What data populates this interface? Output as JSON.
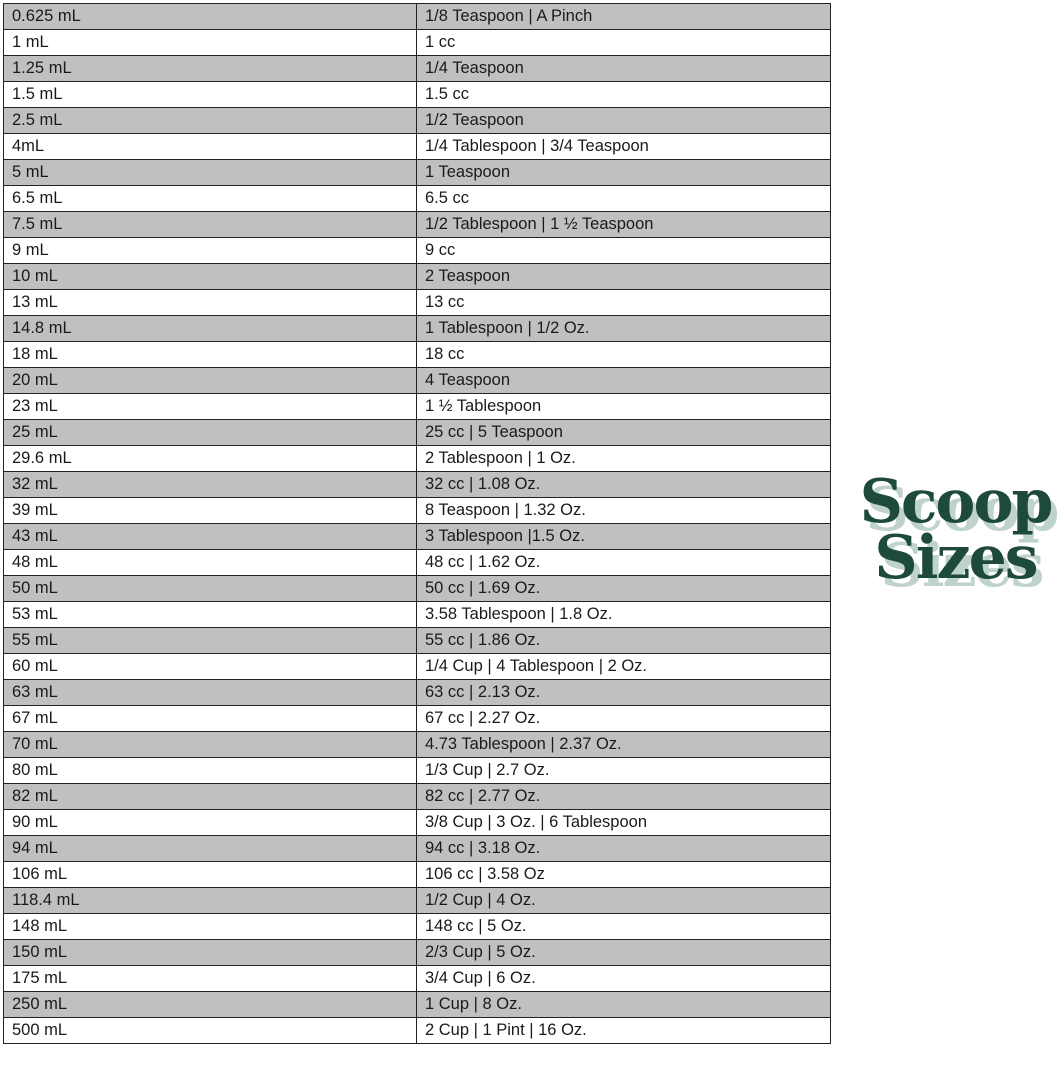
{
  "logo": {
    "line1": "Scoop",
    "line2": "Sizes",
    "colors": {
      "text": "#1d4a3d",
      "shadow": "#bfd2cc"
    }
  },
  "table": {
    "row_colors": [
      "#c0c0c0",
      "#ffffff"
    ],
    "rows": [
      [
        "0.625 mL",
        "1/8 Teaspoon | A Pinch"
      ],
      [
        "1 mL",
        "1 cc"
      ],
      [
        "1.25 mL",
        "1/4 Teaspoon"
      ],
      [
        "1.5 mL",
        "1.5 cc"
      ],
      [
        "2.5 mL",
        "1/2 Teaspoon"
      ],
      [
        "4mL",
        "1/4 Tablespoon | 3/4 Teaspoon"
      ],
      [
        "5 mL",
        "1 Teaspoon"
      ],
      [
        "6.5 mL",
        "6.5 cc"
      ],
      [
        "7.5 mL",
        "1/2 Tablespoon | 1 ½ Teaspoon"
      ],
      [
        "9 mL",
        "9 cc"
      ],
      [
        "10 mL",
        "2 Teaspoon"
      ],
      [
        "13 mL",
        "13 cc"
      ],
      [
        "14.8 mL",
        "1 Tablespoon | 1/2 Oz."
      ],
      [
        "18 mL",
        "18 cc"
      ],
      [
        "20 mL",
        "4 Teaspoon"
      ],
      [
        "23 mL",
        "1 ½ Tablespoon"
      ],
      [
        "25 mL",
        "25 cc | 5 Teaspoon"
      ],
      [
        "29.6 mL",
        "2 Tablespoon | 1 Oz."
      ],
      [
        "32 mL",
        "32 cc | 1.08 Oz."
      ],
      [
        "39 mL",
        "8 Teaspoon | 1.32 Oz."
      ],
      [
        "43 mL",
        "3 Tablespoon |1.5 Oz."
      ],
      [
        "48 mL",
        "48 cc | 1.62 Oz."
      ],
      [
        "50 mL",
        "50 cc | 1.69 Oz."
      ],
      [
        "53 mL",
        "3.58 Tablespoon | 1.8 Oz."
      ],
      [
        "55 mL",
        "55 cc | 1.86 Oz."
      ],
      [
        "60 mL",
        "1/4 Cup | 4 Tablespoon | 2 Oz."
      ],
      [
        "63 mL",
        "63 cc | 2.13 Oz."
      ],
      [
        "67 mL",
        "67 cc | 2.27 Oz."
      ],
      [
        "70 mL",
        "4.73 Tablespoon | 2.37 Oz."
      ],
      [
        "80 mL",
        "1/3 Cup | 2.7 Oz."
      ],
      [
        "82 mL",
        "82 cc | 2.77 Oz."
      ],
      [
        "90 mL",
        "3/8 Cup | 3 Oz. | 6 Tablespoon"
      ],
      [
        "94 mL",
        "94 cc | 3.18 Oz."
      ],
      [
        "106 mL",
        "106 cc | 3.58 Oz"
      ],
      [
        "118.4 mL",
        "1/2 Cup | 4 Oz."
      ],
      [
        "148 mL",
        "148 cc | 5 Oz."
      ],
      [
        "150 mL",
        "2/3 Cup | 5 Oz."
      ],
      [
        "175 mL",
        "3/4 Cup | 6 Oz."
      ],
      [
        "250 mL",
        "1 Cup | 8 Oz."
      ],
      [
        "500 mL",
        "2 Cup | 1 Pint | 16 Oz."
      ]
    ]
  }
}
